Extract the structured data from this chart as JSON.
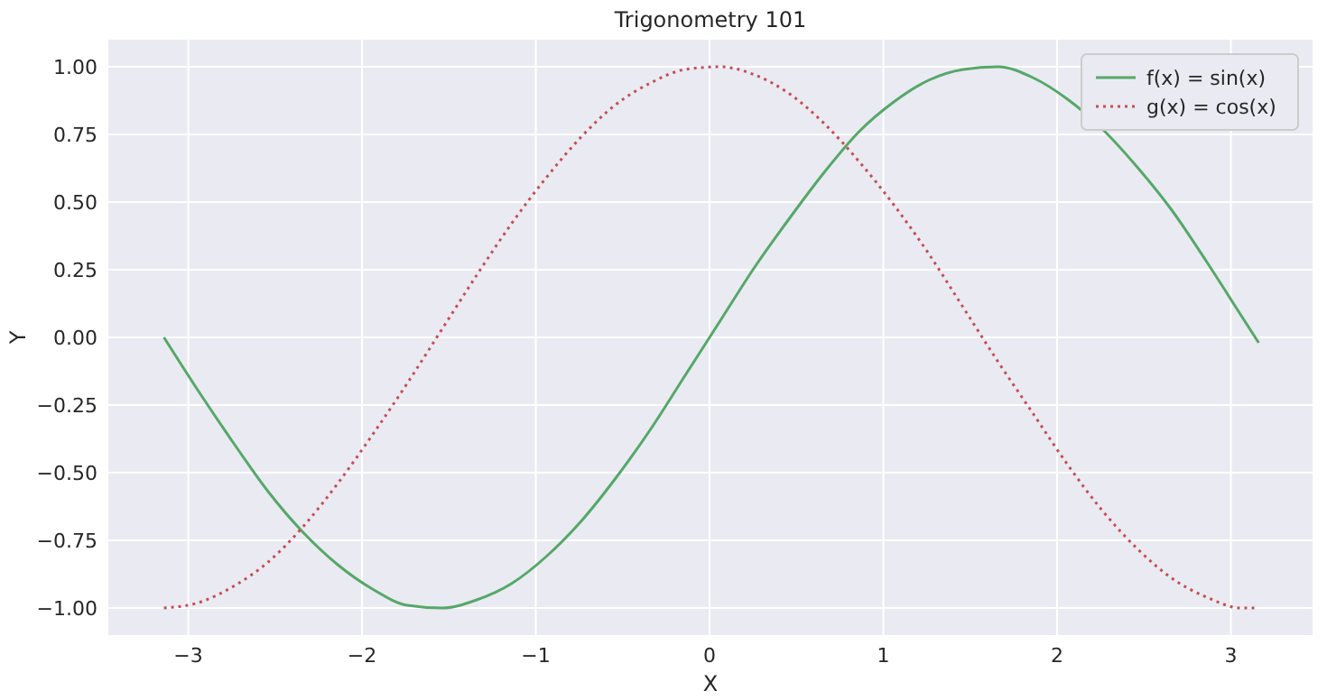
{
  "chart_data": {
    "type": "line",
    "title": "Trigonometry 101",
    "xlabel": "X",
    "ylabel": "Y",
    "x": [
      -3.14,
      -2.94,
      -2.74,
      -2.54,
      -2.34,
      -2.14,
      -1.94,
      -1.74,
      -1.54,
      -1.34,
      -1.14,
      -0.94,
      -0.74,
      -0.54,
      -0.34,
      -0.14,
      0.06,
      0.26,
      0.46,
      0.66,
      0.86,
      1.06,
      1.26,
      1.46,
      1.66,
      1.86,
      2.06,
      2.26,
      2.46,
      2.66,
      2.86,
      3.06,
      3.16
    ],
    "series": [
      {
        "name": "f(x) = sin(x)",
        "color": "#55a868",
        "line_style": "solid",
        "values": [
          0,
          -0.2,
          -0.39,
          -0.57,
          -0.72,
          -0.84,
          -0.93,
          -0.99,
          -1,
          -0.97,
          -0.91,
          -0.81,
          -0.68,
          -0.52,
          -0.34,
          -0.14,
          0.06,
          0.26,
          0.44,
          0.61,
          0.76,
          0.87,
          0.95,
          0.99,
          1,
          0.96,
          0.88,
          0.77,
          0.63,
          0.47,
          0.28,
          0.08,
          -0.02
        ]
      },
      {
        "name": "g(x) = cos(x)",
        "color": "#c44e52",
        "line_style": "dotted",
        "values": [
          -1,
          -0.98,
          -0.92,
          -0.83,
          -0.7,
          -0.54,
          -0.36,
          -0.17,
          0.03,
          0.23,
          0.42,
          0.59,
          0.74,
          0.86,
          0.94,
          0.99,
          1,
          0.97,
          0.9,
          0.79,
          0.65,
          0.49,
          0.31,
          0.11,
          -0.09,
          -0.28,
          -0.47,
          -0.64,
          -0.78,
          -0.89,
          -0.96,
          -1,
          -1
        ]
      }
    ],
    "xlim": [
      -3.46,
      3.47
    ],
    "ylim": [
      -1.1,
      1.1
    ],
    "xticks": [
      {
        "value": -3,
        "label": "−3"
      },
      {
        "value": -2,
        "label": "−2"
      },
      {
        "value": -1,
        "label": "−1"
      },
      0,
      1,
      2,
      3
    ],
    "yticks": [
      {
        "value": -1,
        "label": "−1.00"
      },
      {
        "value": -0.75,
        "label": "−0.75"
      },
      {
        "value": -0.5,
        "label": "−0.50"
      },
      {
        "value": -0.25,
        "label": "−0.25"
      },
      {
        "value": 0,
        "label": "0.00"
      },
      {
        "value": 0.25,
        "label": "0.25"
      },
      {
        "value": 0.5,
        "label": "0.50"
      },
      {
        "value": 0.75,
        "label": "0.75"
      },
      {
        "value": 1,
        "label": "1.00"
      }
    ],
    "grid": true,
    "legend": "top right"
  }
}
